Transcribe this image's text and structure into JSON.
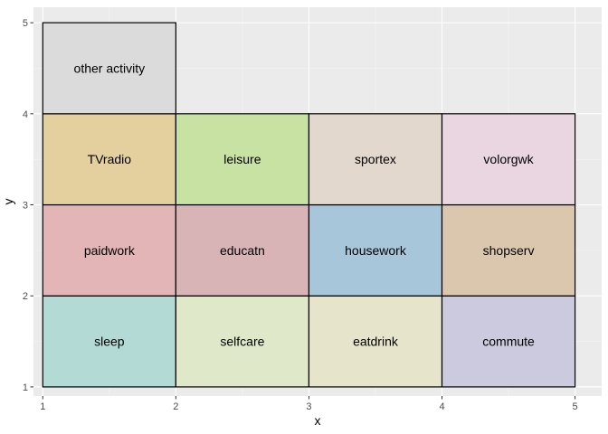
{
  "chart_data": {
    "type": "heatmap",
    "title": "",
    "xlabel": "x",
    "ylabel": "y",
    "xlim": [
      0.93,
      5.2
    ],
    "ylim": [
      0.9,
      5.17
    ],
    "x_ticks": [
      1,
      2,
      3,
      4,
      5
    ],
    "y_ticks": [
      1,
      2,
      3,
      4,
      5
    ],
    "x_tick_labels": [
      "1",
      "2",
      "3",
      "4",
      "5"
    ],
    "y_tick_labels": [
      "1",
      "2",
      "3",
      "4",
      "5"
    ],
    "grid": true,
    "panel_background": "#ebebeb",
    "tile_border_color": "#000000",
    "tiles": [
      {
        "label": "sleep",
        "xmin": 1,
        "xmax": 2,
        "ymin": 1,
        "ymax": 2,
        "color": "#b3dad4"
      },
      {
        "label": "selfcare",
        "xmin": 2,
        "xmax": 3,
        "ymin": 1,
        "ymax": 2,
        "color": "#dfe9ca"
      },
      {
        "label": "eatdrink",
        "xmin": 3,
        "xmax": 4,
        "ymin": 1,
        "ymax": 2,
        "color": "#e6e5cb"
      },
      {
        "label": "commute",
        "xmin": 4,
        "xmax": 5,
        "ymin": 1,
        "ymax": 2,
        "color": "#cbcade"
      },
      {
        "label": "paidwork",
        "xmin": 1,
        "xmax": 2,
        "ymin": 2,
        "ymax": 3,
        "color": "#e3b5b7"
      },
      {
        "label": "educatn",
        "xmin": 2,
        "xmax": 3,
        "ymin": 2,
        "ymax": 3,
        "color": "#d8b4b7"
      },
      {
        "label": "housework",
        "xmin": 3,
        "xmax": 4,
        "ymin": 2,
        "ymax": 3,
        "color": "#a8c6da"
      },
      {
        "label": "shopserv",
        "xmin": 4,
        "xmax": 5,
        "ymin": 2,
        "ymax": 3,
        "color": "#dac7ae"
      },
      {
        "label": "TVradio",
        "xmin": 1,
        "xmax": 2,
        "ymin": 3,
        "ymax": 4,
        "color": "#e4d09f"
      },
      {
        "label": "leisure",
        "xmin": 2,
        "xmax": 3,
        "ymin": 3,
        "ymax": 4,
        "color": "#c7e2a2"
      },
      {
        "label": "sportex",
        "xmin": 3,
        "xmax": 4,
        "ymin": 3,
        "ymax": 4,
        "color": "#e3d8cd"
      },
      {
        "label": "volorgwk",
        "xmin": 4,
        "xmax": 5,
        "ymin": 3,
        "ymax": 4,
        "color": "#ead6e1"
      },
      {
        "label": "other activity",
        "xmin": 1,
        "xmax": 2,
        "ymin": 4,
        "ymax": 5,
        "color": "#dbdbdb"
      }
    ]
  }
}
